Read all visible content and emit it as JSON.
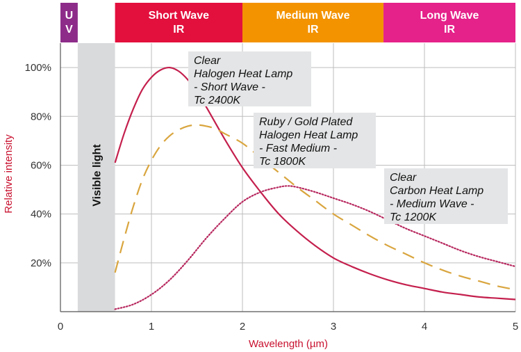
{
  "chart_data": {
    "type": "line",
    "xlabel": "Wavelength (µm)",
    "ylabel": "Relative intensity",
    "xlim": [
      0,
      5
    ],
    "ylim": [
      0,
      110
    ],
    "x_ticks": [
      "0",
      "1",
      "2",
      "3",
      "4",
      "5"
    ],
    "y_ticks": [
      {
        "value": 20,
        "label": "20%"
      },
      {
        "value": 40,
        "label": "40%"
      },
      {
        "value": 60,
        "label": "60%"
      },
      {
        "value": 80,
        "label": "80%"
      },
      {
        "value": 100,
        "label": "100%"
      }
    ],
    "grid": true,
    "bands": [
      {
        "id": "uv",
        "lines": [
          "U",
          "V"
        ],
        "x_range": [
          0,
          0.19
        ],
        "color": "#8e2c8a"
      },
      {
        "id": "short-wave",
        "lines": [
          "Short Wave",
          "IR"
        ],
        "x_range": [
          0.6,
          2.0
        ],
        "color": "#e30f3d"
      },
      {
        "id": "medium-wave",
        "lines": [
          "Medium Wave",
          "IR"
        ],
        "x_range": [
          2.0,
          3.55
        ],
        "color": "#f39300"
      },
      {
        "id": "long-wave",
        "lines": [
          "Long Wave",
          "IR"
        ],
        "x_range": [
          3.55,
          5.0
        ],
        "color": "#e5218a"
      }
    ],
    "visible_light": {
      "label": "Visible light",
      "x_range": [
        0.19,
        0.6
      ],
      "color": "#d9dadb"
    },
    "series": [
      {
        "id": "short-wave-lamp",
        "label_lines": [
          "Clear",
          "Halogen Heat Lamp",
          "- Short Wave -",
          "Tc 2400K"
        ],
        "style": "solid",
        "color": "#c41f4d",
        "x": [
          0.6,
          0.7,
          0.8,
          0.9,
          1.0,
          1.1,
          1.2,
          1.3,
          1.4,
          1.5,
          1.6,
          1.8,
          2.0,
          2.2,
          2.4,
          2.6,
          2.8,
          3.0,
          3.2,
          3.4,
          3.6,
          3.8,
          4.0,
          4.2,
          4.4,
          4.6,
          4.8,
          5.0
        ],
        "y": [
          61,
          73,
          83,
          91,
          96,
          99,
          100,
          98.5,
          95,
          90,
          84,
          71,
          59,
          49,
          40,
          33,
          27,
          22,
          18.5,
          15.5,
          13,
          11,
          9.5,
          8,
          7,
          6,
          5.5,
          5
        ]
      },
      {
        "id": "medium-wave-lamp",
        "label_lines": [
          "Ruby  /  Gold Plated",
          "Halogen Heat Lamp",
          "- Fast Medium -",
          "Tc 1800K"
        ],
        "style": "dashed",
        "color": "#d9a53e",
        "x": [
          0.6,
          0.7,
          0.8,
          0.9,
          1.0,
          1.1,
          1.2,
          1.3,
          1.4,
          1.5,
          1.6,
          1.7,
          1.8,
          2.0,
          2.2,
          2.4,
          2.6,
          2.8,
          3.0,
          3.2,
          3.4,
          3.6,
          3.8,
          4.0,
          4.2,
          4.4,
          4.6,
          4.8,
          5.0
        ],
        "y": [
          16,
          30,
          43,
          54,
          62,
          68,
          72,
          74.5,
          76,
          76.5,
          76,
          75,
          73,
          69,
          63,
          57,
          51,
          45.5,
          40,
          35.5,
          31,
          27,
          23.5,
          20,
          17,
          14.5,
          12.5,
          10.5,
          9
        ]
      },
      {
        "id": "long-wave-lamp",
        "label_lines": [
          "Clear",
          "Carbon Heat Lamp",
          "- Medium Wave -",
          "Tc 1200K"
        ],
        "style": "dotted",
        "color": "#b7285e",
        "x": [
          0.6,
          0.8,
          1.0,
          1.2,
          1.4,
          1.6,
          1.8,
          2.0,
          2.2,
          2.4,
          2.5,
          2.6,
          2.8,
          3.0,
          3.2,
          3.4,
          3.6,
          3.8,
          4.0,
          4.2,
          4.4,
          4.6,
          4.8,
          5.0
        ],
        "y": [
          1,
          3,
          7,
          13,
          21,
          30,
          38,
          45,
          49,
          51,
          51.5,
          51,
          49,
          46.5,
          44,
          41,
          37.5,
          34,
          31,
          28,
          25,
          22.5,
          20.5,
          18.5
        ]
      }
    ]
  }
}
